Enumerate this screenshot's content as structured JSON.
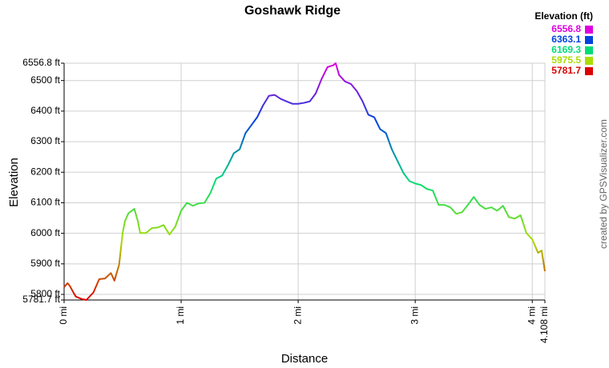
{
  "chart_data": {
    "type": "line",
    "title": "Goshawk Ridge",
    "x_label": "Distance",
    "y_label": "Elevation",
    "credit": "created by GPSVisualizer.com",
    "color_scale": {
      "title": "Elevation (ft)",
      "stops": [
        {
          "value": 6556.8,
          "color": "#dd00dd"
        },
        {
          "value": 6363.1,
          "color": "#0044dd"
        },
        {
          "value": 6169.3,
          "color": "#00dd77"
        },
        {
          "value": 5975.5,
          "color": "#aadd00"
        },
        {
          "value": 5781.7,
          "color": "#dd0000"
        }
      ]
    },
    "x": [
      0,
      0.03,
      0.05,
      0.08,
      0.1,
      0.15,
      0.19,
      0.25,
      0.3,
      0.35,
      0.4,
      0.43,
      0.47,
      0.5,
      0.52,
      0.55,
      0.6,
      0.63,
      0.65,
      0.7,
      0.75,
      0.8,
      0.85,
      0.9,
      0.95,
      1.0,
      1.05,
      1.1,
      1.15,
      1.2,
      1.25,
      1.3,
      1.35,
      1.4,
      1.45,
      1.5,
      1.55,
      1.6,
      1.65,
      1.7,
      1.75,
      1.8,
      1.85,
      1.9,
      1.95,
      2.0,
      2.05,
      2.1,
      2.15,
      2.2,
      2.25,
      2.3,
      2.32,
      2.35,
      2.4,
      2.45,
      2.5,
      2.55,
      2.6,
      2.65,
      2.7,
      2.75,
      2.8,
      2.85,
      2.9,
      2.95,
      3.0,
      3.05,
      3.1,
      3.15,
      3.2,
      3.25,
      3.3,
      3.35,
      3.4,
      3.45,
      3.5,
      3.55,
      3.6,
      3.65,
      3.7,
      3.75,
      3.8,
      3.85,
      3.9,
      3.95,
      4.0,
      4.05,
      4.08,
      4.108
    ],
    "values": [
      5824,
      5837,
      5827,
      5806,
      5793,
      5785,
      5781.7,
      5806,
      5850,
      5852,
      5870,
      5845,
      5897,
      6001,
      6040,
      6066,
      6080,
      6040,
      6001,
      6001,
      6017,
      6019,
      6027,
      5996,
      6022,
      6074,
      6100,
      6090,
      6098,
      6100,
      6132,
      6179,
      6189,
      6223,
      6262,
      6275,
      6328,
      6354,
      6380,
      6419,
      6450,
      6453,
      6440,
      6432,
      6424,
      6424,
      6427,
      6432,
      6458,
      6505,
      6544,
      6550,
      6556.8,
      6518,
      6497,
      6489,
      6466,
      6432,
      6388,
      6380,
      6341,
      6328,
      6275,
      6236,
      6197,
      6171,
      6163,
      6158,
      6145,
      6140,
      6093,
      6093,
      6085,
      6064,
      6069,
      6093,
      6119,
      6093,
      6080,
      6085,
      6074,
      6090,
      6053,
      6048,
      6059,
      6001,
      5980,
      5936,
      5944,
      5876
    ],
    "xlim": [
      0,
      4.108
    ],
    "xticks": [
      {
        "value": 0,
        "label": "0 mi"
      },
      {
        "value": 1,
        "label": "1 mi"
      },
      {
        "value": 2,
        "label": "2 mi"
      },
      {
        "value": 3,
        "label": "3 mi"
      },
      {
        "value": 4,
        "label": "4 mi"
      },
      {
        "value": 4.108,
        "label": "4.108 mi"
      }
    ],
    "ylim": [
      5781.7,
      6556.8
    ],
    "yticks": [
      {
        "value": 5781.7,
        "label": "5781.7 ft"
      },
      {
        "value": 5800,
        "label": "5800 ft"
      },
      {
        "value": 5900,
        "label": "5900 ft"
      },
      {
        "value": 6000,
        "label": "6000 ft"
      },
      {
        "value": 6100,
        "label": "6100 ft"
      },
      {
        "value": 6200,
        "label": "6200 ft"
      },
      {
        "value": 6300,
        "label": "6300 ft"
      },
      {
        "value": 6400,
        "label": "6400 ft"
      },
      {
        "value": 6500,
        "label": "6500 ft"
      },
      {
        "value": 6556.8,
        "label": "6556.8 ft"
      }
    ],
    "grid": true
  }
}
